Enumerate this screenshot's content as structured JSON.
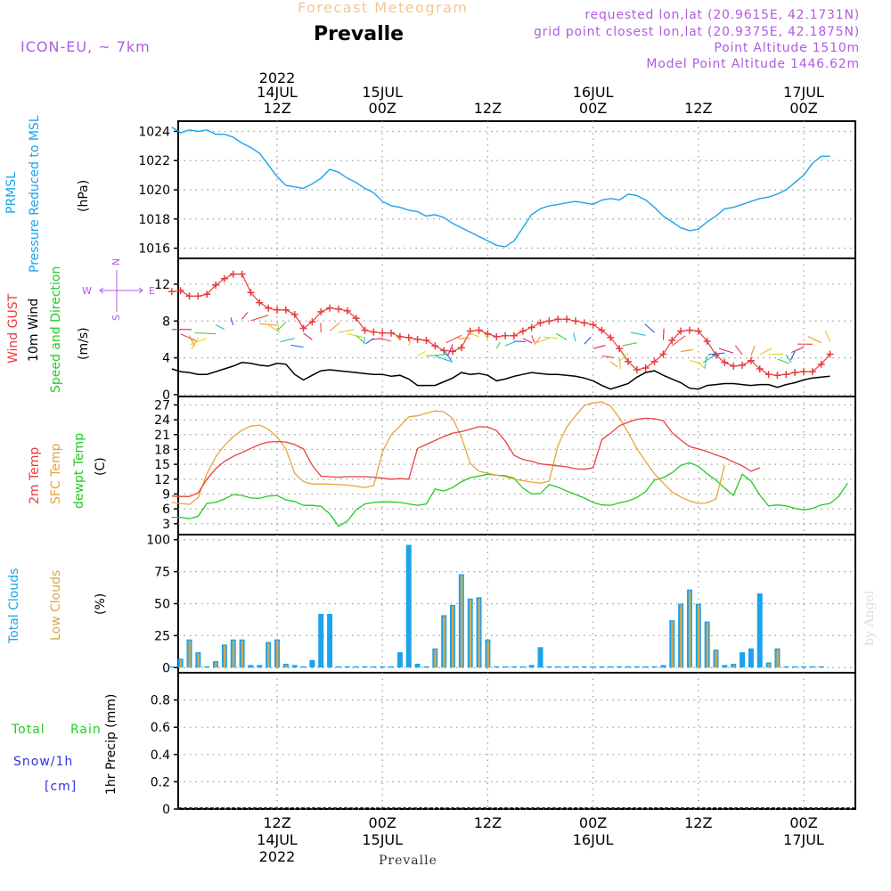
{
  "header": {
    "title": "Prevalle",
    "subtitle": "Forecast Meteogram",
    "model": "ICON-EU, ~ 7km",
    "requested": "requested lon,lat (20.9615E, 42.1731N)",
    "grid": "grid point closest lon,lat (20.9375E, 42.1875N)",
    "point_alt": "Point Altitude 1510m",
    "model_alt": "Model Point Altitude 1446.62m",
    "footer_location": "Prevalle",
    "credit": "by Angel"
  },
  "colors": {
    "pressure": "#1ca3ec",
    "gust": "#e83c3c",
    "wind10m": "#000000",
    "temp": "#e8413c",
    "sfc": "#e8a33c",
    "dewpt": "#22cc22",
    "total_cloud": "#1ca3ec",
    "low_cloud": "#d4a84a",
    "header_purple": "#b05ce0",
    "title_orange": "#f0c890",
    "rain": "#22cc22",
    "snow": "#3333dd"
  },
  "chart_data": [
    {
      "type": "line",
      "id": "pressure",
      "title": "PRMSL Pressure Reduced to MSL",
      "ylabel": "(hPa)",
      "ylim": [
        1015.3,
        1024.7
      ],
      "yticks": [
        "1016",
        "1018",
        "1020",
        "1022",
        "1024"
      ],
      "x_hours_from_14JUL_00Z": [
        0,
        1,
        2,
        3,
        4,
        5,
        6,
        7,
        8,
        9,
        10,
        11,
        12,
        13,
        14,
        15,
        16,
        17,
        18,
        19,
        20,
        21,
        22,
        23,
        24,
        25,
        26,
        27,
        28,
        29,
        30,
        31,
        32,
        33,
        34,
        35,
        36,
        37,
        38,
        39,
        40,
        41,
        42,
        43,
        44,
        45,
        46,
        47,
        48,
        49,
        50,
        51,
        52,
        53,
        54,
        55,
        56,
        57,
        58,
        59,
        60,
        61,
        62,
        63,
        64,
        65,
        66,
        67,
        68,
        69,
        70,
        71,
        72,
        73,
        74,
        75
      ],
      "values": [
        1024.3,
        1023.9,
        1024.1,
        1024.0,
        1024.1,
        1023.8,
        1023.8,
        1023.6,
        1023.2,
        1022.9,
        1022.5,
        1021.7,
        1020.9,
        1020.3,
        1020.2,
        1020.1,
        1020.4,
        1020.8,
        1021.4,
        1021.2,
        1020.8,
        1020.5,
        1020.1,
        1019.8,
        1019.2,
        1018.9,
        1018.8,
        1018.6,
        1018.5,
        1018.2,
        1018.3,
        1018.1,
        1017.7,
        1017.4,
        1017.1,
        1016.8,
        1016.5,
        1016.2,
        1016.1,
        1016.5,
        1017.4,
        1018.3,
        1018.7,
        1018.9,
        1019.0,
        1019.1,
        1019.2,
        1019.1,
        1019.0,
        1019.3,
        1019.4,
        1019.3,
        1019.7,
        1019.6,
        1019.3,
        1018.8,
        1018.2,
        1017.8,
        1017.4,
        1017.2,
        1017.3,
        1017.8,
        1018.2,
        1018.7,
        1018.8,
        1019.0,
        1019.2,
        1019.4,
        1019.5,
        1019.7,
        1020.0,
        1020.5,
        1021.0,
        1021.8,
        1022.3,
        1022.3
      ]
    },
    {
      "type": "line",
      "id": "wind",
      "title": "Wind GUST / 10m Wind / Speed and Direction",
      "ylabel": "(m/s)",
      "ylim": [
        -0.2,
        14.8
      ],
      "yticks": [
        "0",
        "4",
        "8",
        "12"
      ],
      "series": [
        {
          "name": "Wind GUST",
          "values": [
            11.2,
            11.3,
            10.7,
            10.7,
            10.9,
            11.9,
            12.6,
            13.1,
            13.1,
            11.1,
            10.0,
            9.4,
            9.2,
            9.2,
            8.7,
            7.2,
            7.9,
            9.0,
            9.4,
            9.3,
            9.1,
            8.3,
            7.0,
            6.8,
            6.7,
            6.7,
            6.3,
            6.2,
            6.0,
            5.9,
            5.3,
            4.8,
            4.7,
            5.1,
            6.9,
            7.0,
            6.6,
            6.3,
            6.4,
            6.4,
            6.9,
            7.3,
            7.8,
            8.0,
            8.2,
            8.2,
            8.0,
            7.8,
            7.6,
            7.0,
            6.2,
            5.0,
            3.6,
            2.7,
            2.9,
            3.6,
            4.4,
            5.9,
            6.9,
            7.0,
            6.9,
            5.8,
            4.3,
            3.5,
            3.1,
            3.2,
            3.7,
            2.8,
            2.2,
            2.1,
            2.2,
            2.4,
            2.5,
            2.5,
            3.3,
            4.4
          ]
        },
        {
          "name": "10m Wind",
          "values": [
            2.8,
            2.5,
            2.4,
            2.2,
            2.2,
            2.5,
            2.8,
            3.1,
            3.5,
            3.4,
            3.2,
            3.1,
            3.4,
            3.3,
            2.2,
            1.6,
            2.1,
            2.6,
            2.7,
            2.6,
            2.5,
            2.4,
            2.3,
            2.2,
            2.2,
            2.0,
            2.1,
            1.7,
            1.0,
            1.0,
            1.0,
            1.4,
            1.8,
            2.4,
            2.2,
            2.3,
            2.1,
            1.5,
            1.7,
            2.0,
            2.2,
            2.4,
            2.3,
            2.2,
            2.2,
            2.1,
            2.0,
            1.8,
            1.5,
            1.0,
            0.6,
            0.9,
            1.2,
            1.9,
            2.4,
            2.6,
            2.1,
            1.7,
            1.3,
            0.7,
            0.6,
            1.0,
            1.1,
            1.2,
            1.2,
            1.1,
            1.0,
            1.1,
            1.1,
            0.8,
            1.1,
            1.3,
            1.6,
            1.8,
            1.9,
            2.0
          ]
        }
      ],
      "direction_legend": {
        "n": "N",
        "s": "S",
        "e": "E",
        "w": "W"
      }
    },
    {
      "type": "line",
      "id": "temperature",
      "title": "2m Temp / SFC Temp / dewpt Temp",
      "ylabel": "(C)",
      "ylim": [
        0.8,
        28.7
      ],
      "yticks": [
        "3",
        "6",
        "9",
        "12",
        "15",
        "18",
        "21",
        "24",
        "27"
      ],
      "series": [
        {
          "name": "2m Temp",
          "values": [
            8.6,
            8.5,
            8.5,
            9.2,
            12.0,
            14.1,
            15.6,
            16.6,
            17.4,
            18.2,
            19.0,
            19.5,
            19.6,
            19.5,
            19.0,
            18.1,
            14.8,
            12.6,
            12.5,
            12.4,
            12.5,
            12.5,
            12.5,
            12.4,
            12.2,
            12.0,
            12.1,
            12.0,
            18.2,
            19.0,
            19.8,
            20.6,
            21.3,
            21.6,
            22.1,
            22.6,
            22.5,
            21.8,
            19.7,
            16.8,
            16.0,
            15.6,
            15.1,
            14.9,
            14.7,
            14.5,
            14.1,
            14.0,
            14.3,
            20.0,
            21.3,
            22.8,
            23.5,
            24.1,
            24.3,
            24.2,
            23.8,
            21.4,
            19.9,
            18.6,
            18.1,
            17.6,
            16.9,
            16.3,
            15.5,
            14.7,
            13.6,
            14.3
          ]
        },
        {
          "name": "SFC Temp",
          "values": [
            7.3,
            7.1,
            6.9,
            8.3,
            13.1,
            16.5,
            18.8,
            20.6,
            21.9,
            22.7,
            22.9,
            22.1,
            20.5,
            18.1,
            13.2,
            11.5,
            11.0,
            11.0,
            11.0,
            10.9,
            10.8,
            10.6,
            10.3,
            10.7,
            17.5,
            21.0,
            22.7,
            24.6,
            24.8,
            25.3,
            25.8,
            25.6,
            24.3,
            20.5,
            15.2,
            13.6,
            13.2,
            12.8,
            12.5,
            12.0,
            11.7,
            11.4,
            11.2,
            11.6,
            18.8,
            22.5,
            24.8,
            26.9,
            27.4,
            27.6,
            26.8,
            24.4,
            21.4,
            18.2,
            15.5,
            13.1,
            11.2,
            9.4,
            8.4,
            7.6,
            7.1,
            7.2,
            8.0,
            14.8
          ]
        },
        {
          "name": "dewpt Temp",
          "values": [
            4.3,
            4.3,
            4.0,
            4.5,
            7.1,
            7.3,
            8.0,
            8.9,
            8.7,
            8.2,
            8.1,
            8.6,
            8.7,
            7.8,
            7.5,
            6.7,
            6.7,
            6.5,
            5.0,
            2.5,
            3.5,
            5.8,
            7.0,
            7.3,
            7.4,
            7.4,
            7.3,
            7.0,
            6.7,
            7.0,
            10.0,
            9.6,
            10.3,
            11.5,
            12.3,
            12.6,
            13.0,
            12.8,
            12.7,
            12.2,
            10.2,
            9.0,
            9.1,
            10.9,
            10.4,
            9.6,
            8.9,
            8.2,
            7.3,
            6.8,
            6.7,
            7.2,
            7.6,
            8.3,
            9.5,
            11.8,
            12.3,
            13.3,
            14.8,
            15.3,
            14.6,
            13.1,
            11.8,
            10.2,
            8.7,
            13.0,
            11.6,
            8.8,
            6.6,
            6.8,
            6.6,
            6.1,
            5.8,
            6.1,
            6.8,
            7.1,
            8.5,
            11.2
          ]
        }
      ]
    },
    {
      "type": "bar",
      "id": "clouds",
      "title": "Total Clouds / Low Clouds",
      "ylabel": "(%)",
      "ylim": [
        -4,
        104
      ],
      "yticks": [
        "0",
        "25",
        "50",
        "75",
        "100"
      ],
      "series": [
        {
          "name": "Total Clouds",
          "values": [
            1,
            7,
            22,
            12,
            1,
            5,
            18,
            22,
            22,
            2,
            2,
            20,
            22,
            3,
            2,
            1,
            6,
            42,
            42,
            1,
            1,
            1,
            1,
            1,
            1,
            1,
            12,
            96,
            3,
            1,
            15,
            41,
            49,
            73,
            54,
            55,
            22,
            1,
            1,
            1,
            1,
            2,
            16,
            1,
            1,
            1,
            1,
            1,
            1,
            1,
            1,
            1,
            1,
            1,
            1,
            1,
            2,
            37,
            50,
            61,
            50,
            36,
            14,
            2,
            3,
            12,
            15,
            58,
            4,
            15,
            1,
            1,
            1,
            1,
            1,
            0
          ]
        },
        {
          "name": "Low Clouds",
          "values": [
            0,
            6,
            21,
            11,
            0,
            4,
            17,
            21,
            21,
            1,
            1,
            19,
            21,
            2,
            1,
            0,
            1,
            1,
            1,
            0,
            0,
            0,
            0,
            0,
            0,
            0,
            1,
            1,
            1,
            0,
            14,
            40,
            48,
            72,
            53,
            54,
            21,
            0,
            0,
            0,
            0,
            1,
            1,
            0,
            0,
            0,
            0,
            0,
            0,
            0,
            0,
            0,
            0,
            0,
            0,
            0,
            1,
            36,
            49,
            60,
            49,
            35,
            13,
            1,
            2,
            1,
            1,
            1,
            3,
            14,
            0,
            0,
            0,
            0,
            0,
            0
          ]
        }
      ]
    },
    {
      "type": "bar",
      "id": "precip",
      "title": "Total Rain / Snow/1h [cm]",
      "ylabel": "1hr Precip (mm)",
      "ylim": [
        0,
        1.0
      ],
      "yticks": [
        "0",
        "0.2",
        "0.4",
        "0.6",
        "0.8"
      ],
      "series": [
        {
          "name": "Total Rain",
          "values": []
        },
        {
          "name": "Snow/1h",
          "values": []
        }
      ]
    }
  ],
  "top_axis": [
    {
      "hour": 12,
      "label1": "14JUL",
      "label2": "12Z",
      "label0": "2022"
    },
    {
      "hour": 24,
      "label1": "15JUL",
      "label2": "00Z"
    },
    {
      "hour": 36,
      "label1": "",
      "label2": "12Z"
    },
    {
      "hour": 48,
      "label1": "16JUL",
      "label2": "00Z"
    },
    {
      "hour": 60,
      "label1": "",
      "label2": "12Z"
    },
    {
      "hour": 72,
      "label1": "17JUL",
      "label2": "00Z"
    }
  ],
  "bottom_axis": [
    {
      "hour": 12,
      "label1": "12Z",
      "label2": "14JUL",
      "label3": "2022"
    },
    {
      "hour": 24,
      "label1": "00Z",
      "label2": "15JUL"
    },
    {
      "hour": 36,
      "label1": "12Z",
      "label2": ""
    },
    {
      "hour": 48,
      "label1": "00Z",
      "label2": "16JUL"
    },
    {
      "hour": 60,
      "label1": "12Z",
      "label2": ""
    },
    {
      "hour": 72,
      "label1": "00Z",
      "label2": "17JUL"
    }
  ],
  "legends": {
    "pressure": [
      "PRMSL",
      "Pressure Reduced to MSL",
      "(hPa)"
    ],
    "wind": [
      "Wind GUST",
      "10m Wind",
      "Speed and Direction",
      "(m/s)"
    ],
    "temp": [
      "2m Temp",
      "SFC Temp",
      "dewpt Temp",
      "(C)"
    ],
    "clouds": [
      "Total Clouds",
      "Low Clouds",
      "(%)"
    ],
    "precip": [
      "Total",
      "Rain",
      "Snow/1h",
      "[cm]",
      "1hr Precip (mm)"
    ]
  }
}
